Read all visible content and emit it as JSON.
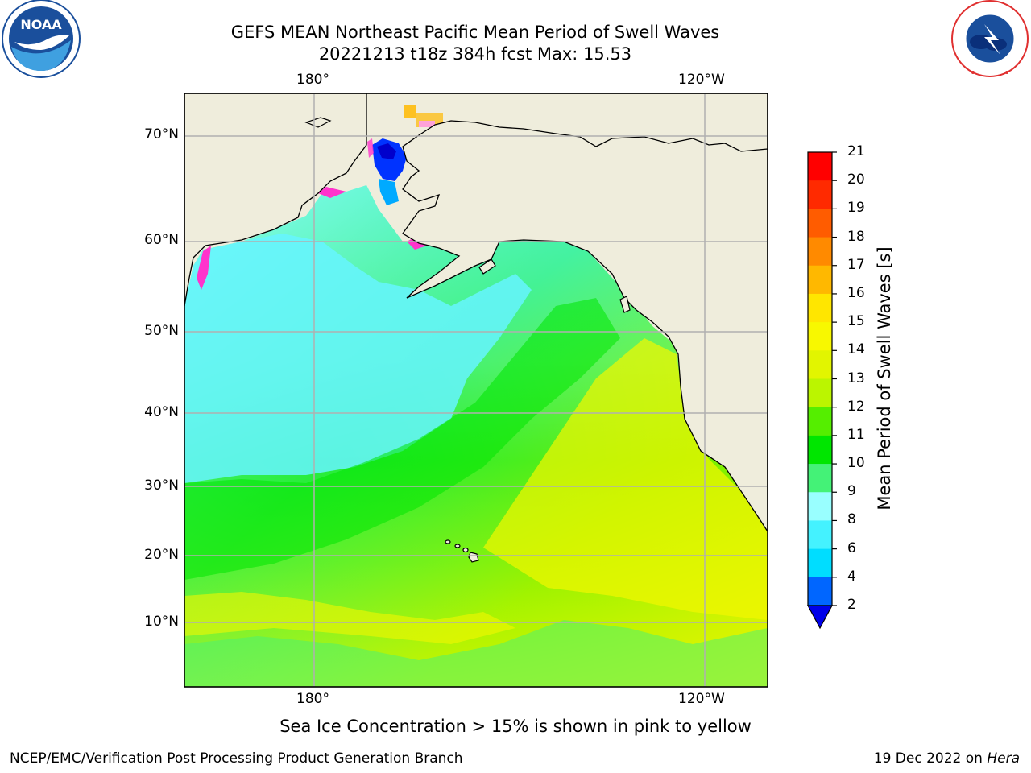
{
  "title": {
    "line1": "GEFS MEAN Northeast Pacific Mean Period of Swell Waves",
    "line2": "20221213 t18z 384h fcst   Max: 15.53"
  },
  "map": {
    "lon_labels": [
      "180°",
      "120°W"
    ],
    "lat_labels": [
      "70°N",
      "60°N",
      "50°N",
      "40°N",
      "30°N",
      "20°N",
      "10°N"
    ],
    "land_color": "#efeddc",
    "grid_color": "#b0b0b0"
  },
  "colorbar": {
    "title": "Mean Period of Swell Waves [s]",
    "levels": [
      "2",
      "4",
      "6",
      "8",
      "9",
      "10",
      "11",
      "12",
      "13",
      "14",
      "15",
      "16",
      "17",
      "18",
      "19",
      "20",
      "21"
    ],
    "colors": [
      "#0000e8",
      "#0066ff",
      "#00ddff",
      "#44f2ff",
      "#99ffff",
      "#44f277",
      "#00e600",
      "#55ee00",
      "#bbf500",
      "#e2f500",
      "#f8f800",
      "#ffe600",
      "#ffb800",
      "#ff8a00",
      "#ff5c00",
      "#ff2a00",
      "#ff0000"
    ]
  },
  "footnote": "Sea Ice Concentration > 15% is shown in pink to yellow",
  "credits": {
    "left": "NCEP/EMC/Verification Post Processing Product Generation Branch",
    "right_date": "19 Dec 2022 on",
    "right_host": "Hera"
  },
  "logos": {
    "left": "NOAA",
    "right": "NATIONAL WEATHER SERVICE"
  }
}
